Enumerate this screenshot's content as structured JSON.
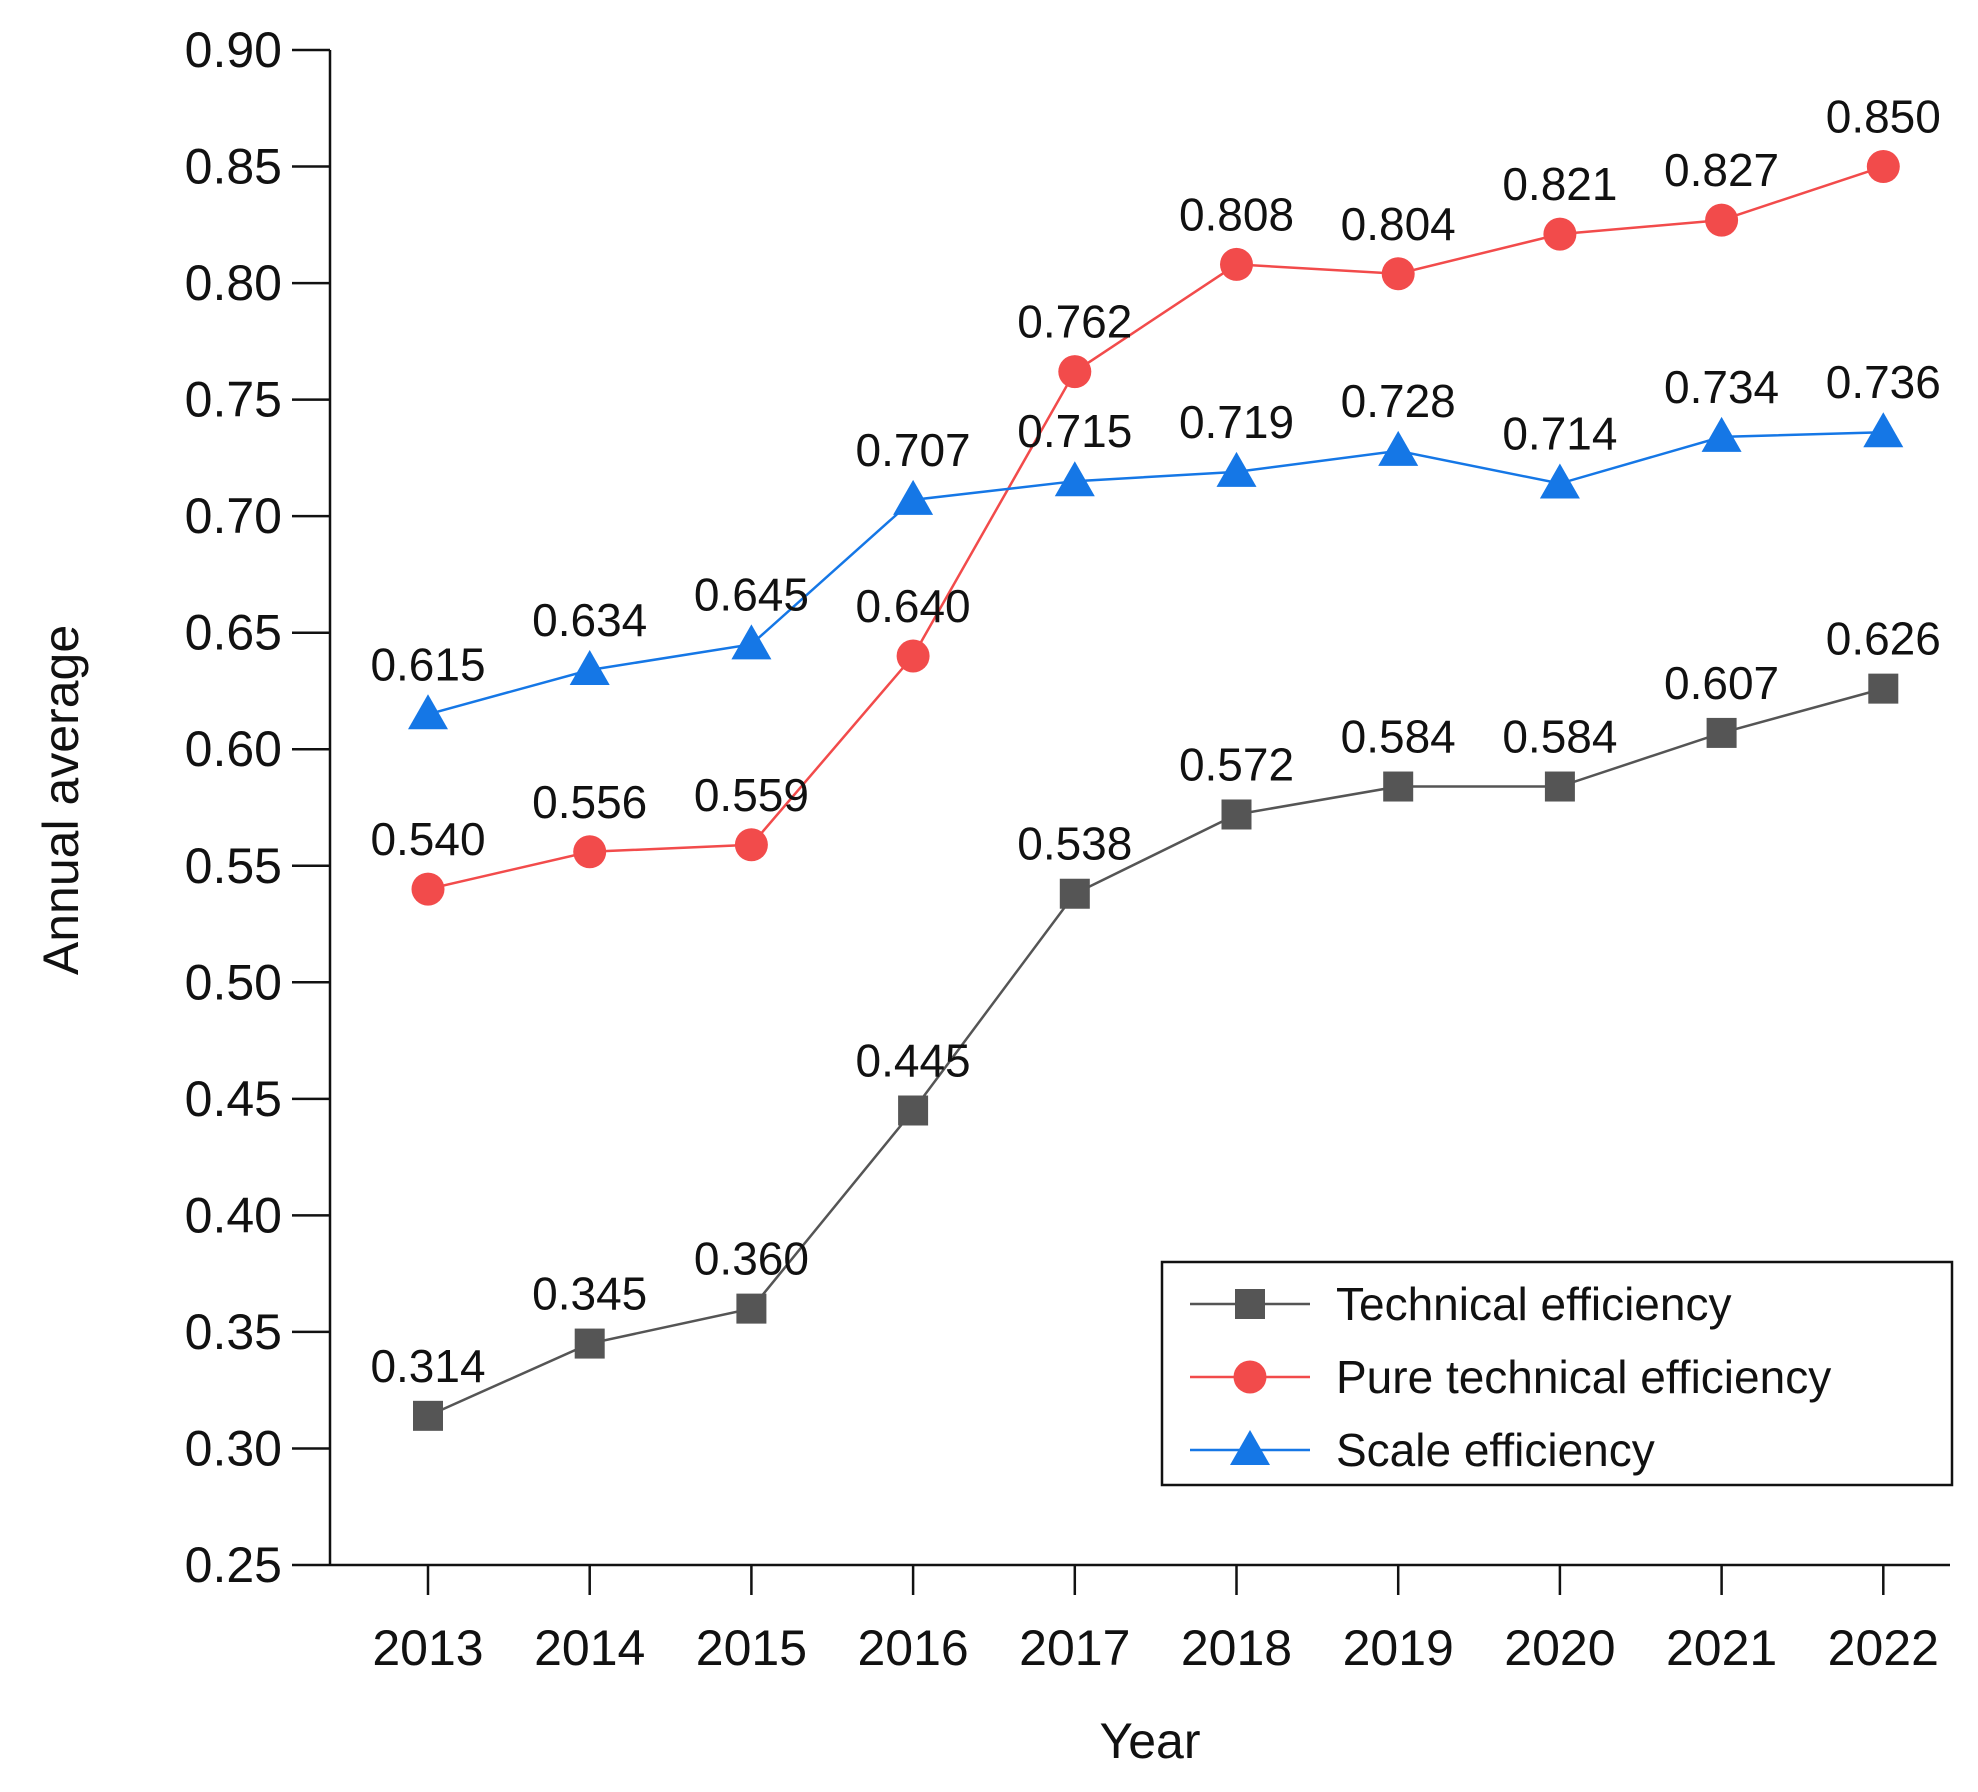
{
  "chart_data": {
    "type": "line",
    "title": "",
    "xlabel": "Year",
    "ylabel": "Annual average",
    "categories": [
      "2013",
      "2014",
      "2015",
      "2016",
      "2017",
      "2018",
      "2019",
      "2020",
      "2021",
      "2022"
    ],
    "ylim": [
      0.25,
      0.9
    ],
    "yticks": [
      "0.25",
      "0.30",
      "0.35",
      "0.40",
      "0.45",
      "0.50",
      "0.55",
      "0.60",
      "0.65",
      "0.70",
      "0.75",
      "0.80",
      "0.85",
      "0.90"
    ],
    "grid": false,
    "legend_position": "bottom-right",
    "series": [
      {
        "name": "Technical efficiency",
        "marker": "square",
        "color": "#555555",
        "values": [
          0.314,
          0.345,
          0.36,
          0.445,
          0.538,
          0.572,
          0.584,
          0.584,
          0.607,
          0.626
        ],
        "labels": [
          "0.314",
          "0.345",
          "0.360",
          "0.445",
          "0.538",
          "0.572",
          "0.584",
          "0.584",
          "0.607",
          "0.626"
        ]
      },
      {
        "name": "Pure technical efficiency",
        "marker": "circle",
        "color": "#f24b4b",
        "values": [
          0.54,
          0.556,
          0.559,
          0.64,
          0.762,
          0.808,
          0.804,
          0.821,
          0.827,
          0.85
        ],
        "labels": [
          "0.540",
          "0.556",
          "0.559",
          "0.640",
          "0.762",
          "0.808",
          "0.804",
          "0.821",
          "0.827",
          "0.850"
        ]
      },
      {
        "name": "Scale efficiency",
        "marker": "triangle",
        "color": "#1577e6",
        "values": [
          0.615,
          0.634,
          0.645,
          0.707,
          0.715,
          0.719,
          0.728,
          0.714,
          0.734,
          0.736
        ],
        "labels": [
          "0.615",
          "0.634",
          "0.645",
          "0.707",
          "0.715",
          "0.719",
          "0.728",
          "0.714",
          "0.734",
          "0.736"
        ]
      }
    ]
  }
}
